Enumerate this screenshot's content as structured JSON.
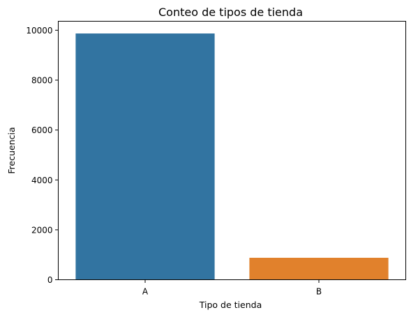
{
  "chart_data": {
    "type": "bar",
    "title": "Conteo de tipos de tienda",
    "xlabel": "Tipo de tienda",
    "ylabel": "Frecuencia",
    "categories": [
      "A",
      "B"
    ],
    "values": [
      9870,
      880
    ],
    "ylim": [
      0,
      10360
    ],
    "yticks": [
      0,
      2000,
      4000,
      6000,
      8000,
      10000
    ],
    "colors": [
      "#3274a1",
      "#e1812c"
    ],
    "grid": false,
    "legend": "none"
  }
}
